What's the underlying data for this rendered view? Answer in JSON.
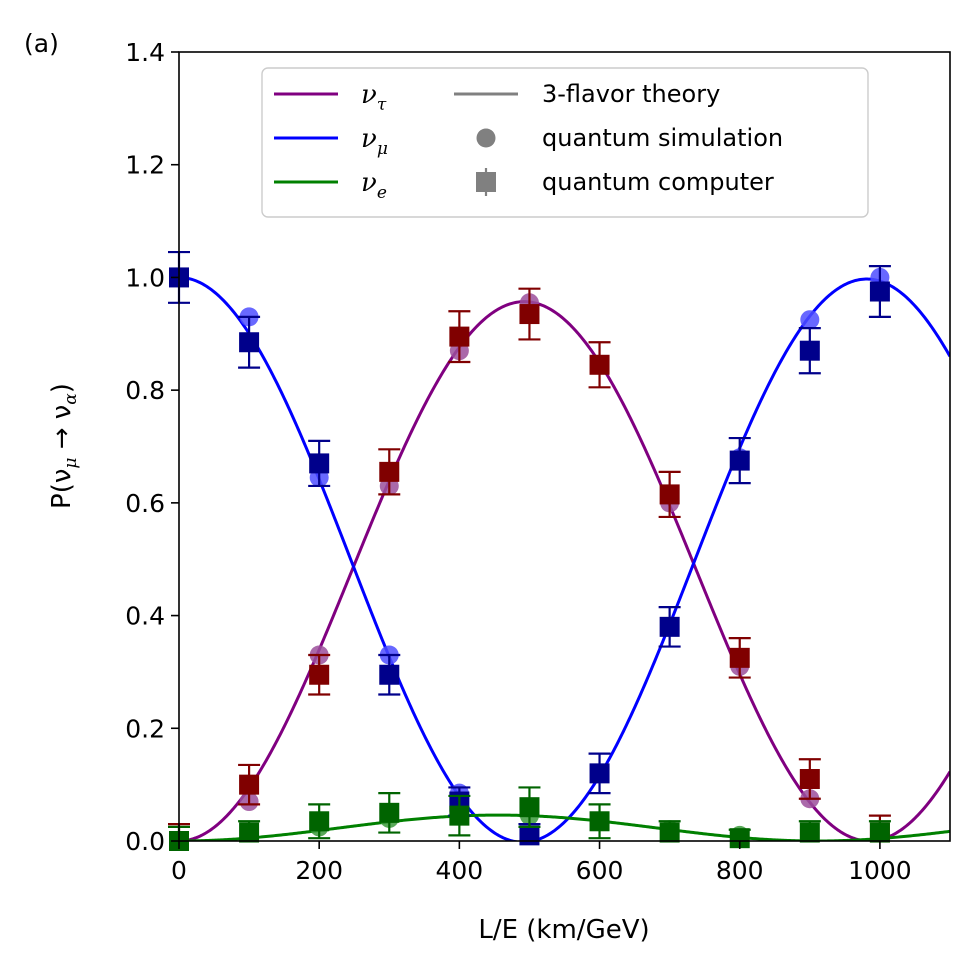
{
  "panel_label": "(a)",
  "chart_data": {
    "type": "line",
    "title": "",
    "xlabel": "L/E (km/GeV)",
    "ylabel": "P(ν_μ → ν_α)",
    "xlim": [
      0,
      1100
    ],
    "ylim": [
      0,
      1.4
    ],
    "xticks": [
      0,
      200,
      400,
      600,
      800,
      1000
    ],
    "xtick_labels": [
      "0",
      "200",
      "400",
      "600",
      "800",
      "1000"
    ],
    "yticks": [
      0.0,
      0.2,
      0.4,
      0.6,
      0.8,
      1.0,
      1.2,
      1.4
    ],
    "ytick_labels": [
      "0.0",
      "0.2",
      "0.4",
      "0.6",
      "0.8",
      "1.0",
      "1.2",
      "1.4"
    ],
    "grid": false,
    "legend_position": "top-center",
    "legend": {
      "series_entries": [
        {
          "symbol": "ν",
          "subscript": "τ",
          "color": "#800080"
        },
        {
          "symbol": "ν",
          "subscript": "μ",
          "color": "#0000ff"
        },
        {
          "symbol": "ν",
          "subscript": "e",
          "color": "#008000"
        }
      ],
      "style_entries": [
        {
          "label": "3-flavor theory",
          "marker": "line"
        },
        {
          "label": "quantum simulation",
          "marker": "circle"
        },
        {
          "label": "quantum computer",
          "marker": "square-errorbar"
        }
      ],
      "marker_color": "#808080"
    },
    "theory_model": {
      "description": "3-flavor theory curves",
      "tau_amplitude": 0.957,
      "e_amplitude": 0.046,
      "mu_period": 985,
      "e_period": 910
    },
    "series": [
      {
        "name": "ν_τ",
        "theory_color": "#800080",
        "sim_color": "#9b4f9b",
        "qc_color": "#800000",
        "sim_x": [
          0,
          100,
          200,
          300,
          400,
          500,
          600,
          700,
          800,
          900,
          1000
        ],
        "sim_y": [
          0.0,
          0.07,
          0.33,
          0.63,
          0.87,
          0.955,
          0.845,
          0.6,
          0.31,
          0.075,
          0.0
        ],
        "qc_x": [
          0,
          100,
          200,
          300,
          400,
          500,
          600,
          700,
          800,
          900,
          1000
        ],
        "qc_y": [
          0.0,
          0.1,
          0.295,
          0.655,
          0.895,
          0.935,
          0.845,
          0.615,
          0.325,
          0.11,
          0.015
        ],
        "qc_err": [
          0.03,
          0.035,
          0.035,
          0.04,
          0.045,
          0.045,
          0.04,
          0.04,
          0.035,
          0.035,
          0.03
        ]
      },
      {
        "name": "ν_μ",
        "theory_color": "#0000ff",
        "sim_color": "#4d4dff",
        "qc_color": "#00008b",
        "sim_x": [
          0,
          100,
          200,
          300,
          400,
          500,
          600,
          700,
          800,
          900,
          1000
        ],
        "sim_y": [
          1.0,
          0.93,
          0.645,
          0.33,
          0.085,
          0.005,
          0.12,
          0.38,
          0.68,
          0.925,
          1.0
        ],
        "qc_x": [
          0,
          100,
          200,
          300,
          400,
          500,
          600,
          700,
          800,
          900,
          1000
        ],
        "qc_y": [
          1.0,
          0.885,
          0.67,
          0.295,
          0.07,
          0.01,
          0.12,
          0.38,
          0.675,
          0.87,
          0.975
        ],
        "qc_err": [
          0.045,
          0.045,
          0.04,
          0.035,
          0.025,
          0.02,
          0.035,
          0.035,
          0.04,
          0.04,
          0.045
        ]
      },
      {
        "name": "ν_e",
        "theory_color": "#008000",
        "sim_color": "#3c9a3c",
        "qc_color": "#006400",
        "sim_x": [
          0,
          100,
          200,
          300,
          400,
          500,
          600,
          700,
          800,
          900,
          1000
        ],
        "sim_y": [
          0.0,
          0.01,
          0.025,
          0.04,
          0.045,
          0.045,
          0.035,
          0.02,
          0.01,
          0.005,
          0.0
        ],
        "qc_x": [
          0,
          100,
          200,
          300,
          400,
          500,
          600,
          700,
          800,
          900,
          1000
        ],
        "qc_y": [
          0.0,
          0.015,
          0.035,
          0.05,
          0.045,
          0.06,
          0.035,
          0.015,
          0.005,
          0.015,
          0.015
        ],
        "qc_err": [
          0.025,
          0.02,
          0.03,
          0.035,
          0.035,
          0.035,
          0.03,
          0.02,
          0.015,
          0.02,
          0.02
        ]
      }
    ]
  }
}
